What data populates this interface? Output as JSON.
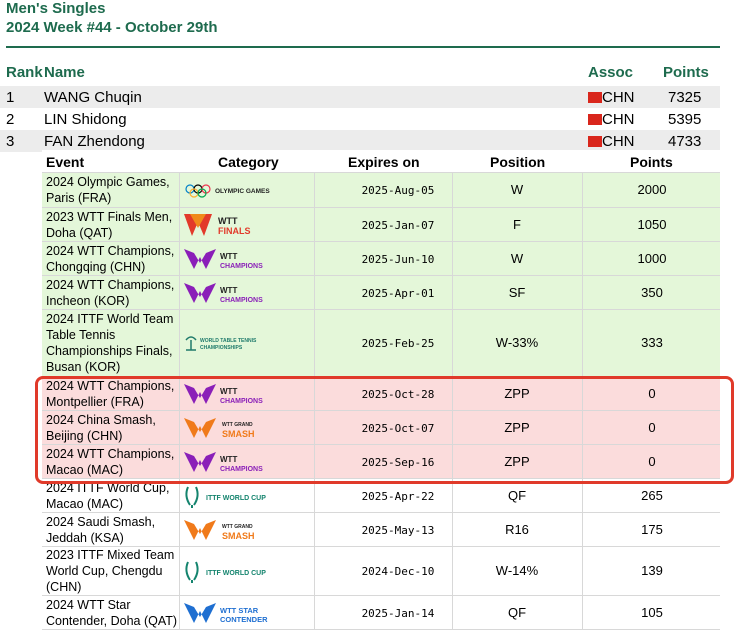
{
  "header": {
    "title": "Men's Singles",
    "subtitle": "2024 Week #44 - October 29th"
  },
  "columns": {
    "rank": "Rank",
    "name": "Name",
    "assoc": "Assoc",
    "points": "Points"
  },
  "players": [
    {
      "rank": "1",
      "name": "WANG Chuqin",
      "assoc": "CHN",
      "points": "7325"
    },
    {
      "rank": "2",
      "name": "LIN Shidong",
      "assoc": "CHN",
      "points": "5395"
    },
    {
      "rank": "3",
      "name": "FAN Zhendong",
      "assoc": "CHN",
      "points": "4733"
    }
  ],
  "events_header": {
    "event": "Event",
    "category": "Category",
    "expires": "Expires on",
    "position": "Position",
    "points": "Points"
  },
  "events": [
    {
      "name": [
        "2024 Olympic Games,",
        "Paris (FRA)"
      ],
      "logo": "olympic-games-logo",
      "logo_text": "OLYMPIC GAMES",
      "expires": "2025-Aug-05",
      "position": "W",
      "points": "2000",
      "status": "green"
    },
    {
      "name": [
        "2023 WTT Finals Men,",
        "Doha (QAT)"
      ],
      "logo": "wtt-finals-logo",
      "logo_text": "WTT FINALS",
      "expires": "2025-Jan-07",
      "position": "F",
      "points": "1050",
      "status": "green"
    },
    {
      "name": [
        "2024 WTT Champions,",
        "Chongqing (CHN)"
      ],
      "logo": "wtt-champions-logo",
      "logo_text": "WTT CHAMPIONS",
      "expires": "2025-Jun-10",
      "position": "W",
      "points": "1000",
      "status": "green"
    },
    {
      "name": [
        "2024 WTT Champions,",
        "Incheon (KOR)"
      ],
      "logo": "wtt-champions-logo",
      "logo_text": "WTT CHAMPIONS",
      "expires": "2025-Apr-01",
      "position": "SF",
      "points": "350",
      "status": "green"
    },
    {
      "name": [
        "2024 ITTF World Team",
        "Table Tennis",
        "Championships Finals,",
        "Busan (KOR)"
      ],
      "logo": "world-team-championships-logo",
      "logo_text": "WORLD TABLE TENNIS CHAMPIONSHIPS",
      "expires": "2025-Feb-25",
      "position": "W-33%",
      "points": "333",
      "status": "green"
    },
    {
      "name": [
        "2024 WTT Champions,",
        "Montpellier (FRA)"
      ],
      "logo": "wtt-champions-logo",
      "logo_text": "WTT CHAMPIONS",
      "expires": "2025-Oct-28",
      "position": "ZPP",
      "points": "0",
      "status": "red"
    },
    {
      "name": [
        "2024 China Smash,",
        "Beijing (CHN)"
      ],
      "logo": "wtt-grand-smash-logo",
      "logo_text": "WTT GRAND SMASH",
      "expires": "2025-Oct-07",
      "position": "ZPP",
      "points": "0",
      "status": "red"
    },
    {
      "name": [
        "2024 WTT Champions,",
        "Macao (MAC)"
      ],
      "logo": "wtt-champions-logo",
      "logo_text": "WTT CHAMPIONS",
      "expires": "2025-Sep-16",
      "position": "ZPP",
      "points": "0",
      "status": "red"
    },
    {
      "name": [
        "2024 ITTF World Cup,",
        "Macao (MAC)"
      ],
      "logo": "ittf-world-cup-logo",
      "logo_text": "ITTF WORLD CUP",
      "expires": "2025-Apr-22",
      "position": "QF",
      "points": "265",
      "status": "white"
    },
    {
      "name": [
        "2024 Saudi Smash,",
        "Jeddah (KSA)"
      ],
      "logo": "wtt-grand-smash-logo",
      "logo_text": "WTT GRAND SMASH",
      "expires": "2025-May-13",
      "position": "R16",
      "points": "175",
      "status": "white"
    },
    {
      "name": [
        "2023 ITTF Mixed Team",
        "World Cup, Chengdu",
        "(CHN)"
      ],
      "logo": "ittf-world-cup-logo",
      "logo_text": "ITTF WORLD CUP",
      "expires": "2024-Dec-10",
      "position": "W-14%",
      "points": "139",
      "status": "white"
    },
    {
      "name": [
        "2024 WTT Star",
        "Contender, Doha (QAT)"
      ],
      "logo": "wtt-star-contender-logo",
      "logo_text": "WTT STAR CONTENDER",
      "expires": "2025-Jan-14",
      "position": "QF",
      "points": "105",
      "status": "white"
    }
  ]
}
